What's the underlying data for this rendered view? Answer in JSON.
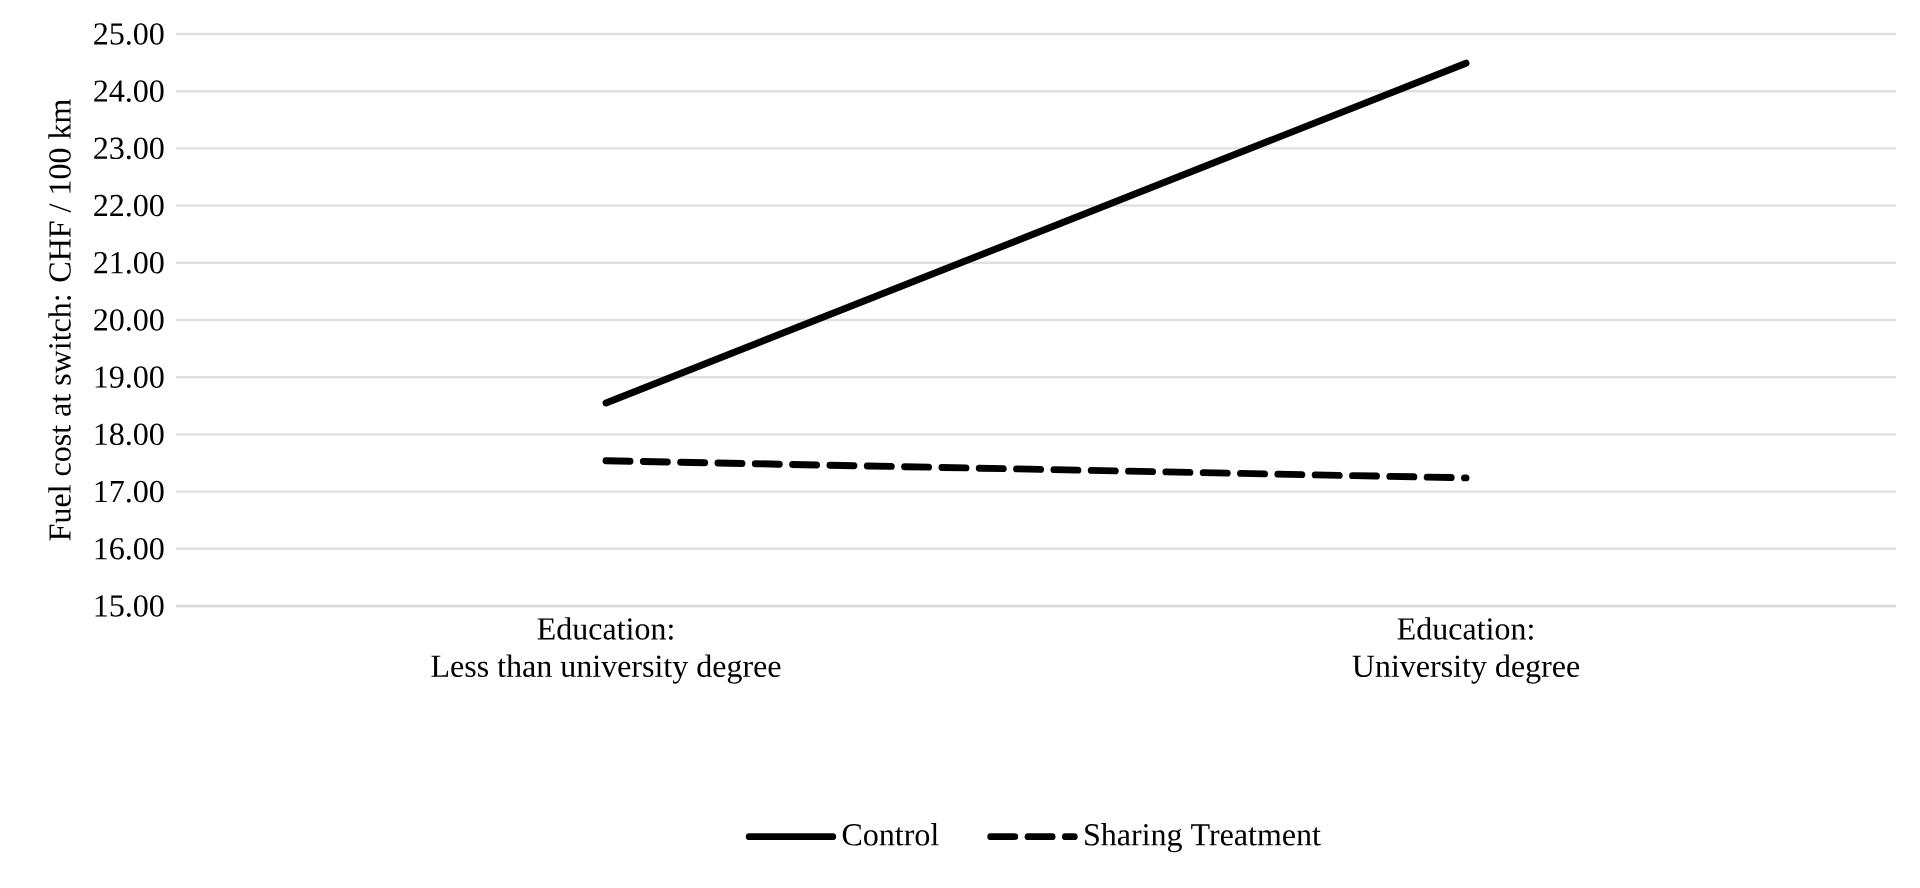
{
  "chart_data": {
    "type": "line",
    "ylabel": "Fuel cost at switch: CHF / 100 km",
    "categories": [
      "Education:\nLess than university degree",
      "Education:\nUniversity degree"
    ],
    "series": [
      {
        "name": "Control",
        "color": "#000000",
        "line_style": "solid",
        "values": [
          18.55,
          24.49
        ]
      },
      {
        "name": "Sharing Treatment",
        "color": "#000000",
        "line_style": "dashed",
        "values": [
          17.54,
          17.24
        ]
      }
    ],
    "ylim": [
      15,
      25
    ],
    "yticks": [
      {
        "value": 15,
        "label": "15.00"
      },
      {
        "value": 16,
        "label": "16.00"
      },
      {
        "value": 17,
        "label": "17.00"
      },
      {
        "value": 18,
        "label": "18.00"
      },
      {
        "value": 19,
        "label": "19.00"
      },
      {
        "value": 20,
        "label": "20.00"
      },
      {
        "value": 21,
        "label": "21.00"
      },
      {
        "value": 22,
        "label": "22.00"
      },
      {
        "value": 23,
        "label": "23.00"
      },
      {
        "value": 24,
        "label": "24.00"
      },
      {
        "value": 25,
        "label": "25.00"
      }
    ],
    "grid": "y",
    "legend": "bottom",
    "marker": "none"
  }
}
